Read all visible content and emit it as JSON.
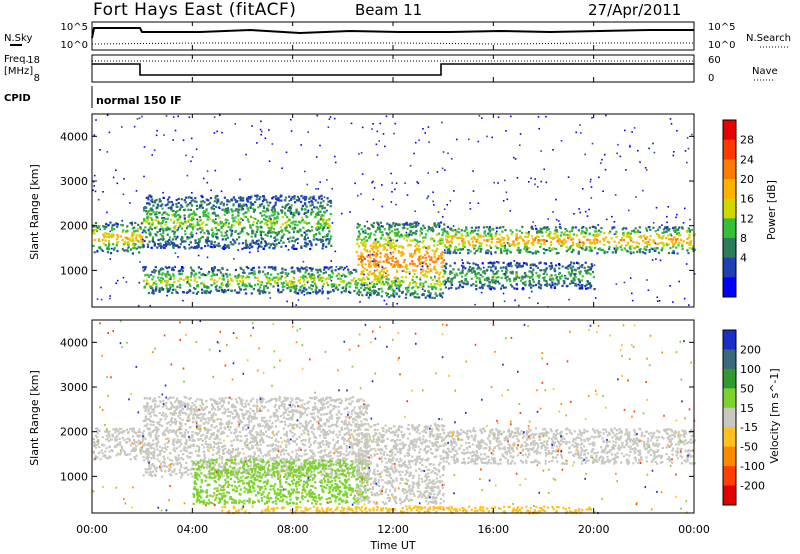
{
  "header": {
    "station": "Fort Hays East (fitACF)",
    "beam": "Beam 11",
    "date": "27/Apr/2011"
  },
  "top_panels": {
    "nsky_label": "N.Sky",
    "nsearch_label": "N.Search",
    "noise_ticks": [
      "10^5",
      "10^0"
    ],
    "freq_label_1": "Freq.",
    "freq_label_2": "[MHz]",
    "freq_ticks": [
      "18",
      "8"
    ],
    "nave_label": "Nave",
    "nave_ticks": [
      "60",
      "0"
    ],
    "cpid_label": "CPID",
    "cpid_value": "normal 150 IF"
  },
  "axes": {
    "ylabel": "Slant Range [km]",
    "yticks": [
      "4000",
      "3000",
      "2000",
      "1000"
    ],
    "xlabel": "Time UT",
    "xticks": [
      "00:00",
      "04:00",
      "08:00",
      "12:00",
      "16:00",
      "20:00",
      "00:00"
    ]
  },
  "power_scale": {
    "label": "Power [dB]",
    "ticks": [
      "28",
      "24",
      "20",
      "16",
      "12",
      "8",
      "4"
    ],
    "colors": [
      "#0000ff",
      "#1e40b4",
      "#2e7d5a",
      "#34c034",
      "#cfd600",
      "#ffb000",
      "#ff7a00",
      "#ff3a00",
      "#e80000"
    ]
  },
  "velocity_scale": {
    "label": "Velocity [m s^-1]",
    "ticks": [
      "200",
      "100",
      "50",
      "15",
      "-15",
      "-50",
      "-100",
      "-200"
    ],
    "colors": [
      "#1830c8",
      "#3a6a7a",
      "#2f9a2f",
      "#7cd32c",
      "#c8c8c0",
      "#ffc020",
      "#ff8a00",
      "#ff4000",
      "#e00000"
    ]
  },
  "chart_data": [
    {
      "type": "heatmap",
      "title": "Power",
      "xlabel": "Time UT",
      "ylabel": "Slant Range [km]",
      "xlim": [
        0,
        24
      ],
      "ylim": [
        180,
        4500
      ],
      "colorbar": "Power [dB]",
      "bands": [
        {
          "t0": 0.0,
          "t1": 2.0,
          "range_start": 1400,
          "range_end": 2100,
          "power": 20
        },
        {
          "t0": 2.0,
          "t1": 10.5,
          "range_start": 500,
          "range_end": 1100,
          "power": 16
        },
        {
          "t0": 2.0,
          "t1": 9.5,
          "range_start": 1500,
          "range_end": 2700,
          "power": 14
        },
        {
          "t0": 10.5,
          "t1": 14.0,
          "range_start": 400,
          "range_end": 2100,
          "power": 24
        },
        {
          "t0": 14.0,
          "t1": 24.0,
          "range_start": 1400,
          "range_end": 2000,
          "power": 22
        },
        {
          "t0": 14.0,
          "t1": 20.0,
          "range_start": 600,
          "range_end": 1200,
          "power": 12
        }
      ]
    },
    {
      "type": "heatmap",
      "title": "Velocity",
      "xlabel": "Time UT",
      "ylabel": "Slant Range [km]",
      "xlim": [
        0,
        24
      ],
      "ylim": [
        180,
        4500
      ],
      "colorbar": "Velocity [m s^-1]",
      "bands": [
        {
          "t0": 0.0,
          "t1": 2.0,
          "range_start": 1400,
          "range_end": 2100,
          "velocity": 0
        },
        {
          "t0": 2.0,
          "t1": 11.0,
          "range_start": 1000,
          "range_end": 2800,
          "velocity": 0
        },
        {
          "t0": 4.0,
          "t1": 11.0,
          "range_start": 400,
          "range_end": 1400,
          "velocity": 40
        },
        {
          "t0": 10.5,
          "t1": 14.0,
          "range_start": 400,
          "range_end": 2200,
          "velocity": 0
        },
        {
          "t0": 14.0,
          "t1": 24.0,
          "range_start": 1300,
          "range_end": 2100,
          "velocity": 0
        },
        {
          "t0": 5.0,
          "t1": 20.0,
          "range_start": 200,
          "range_end": 350,
          "velocity": -40
        }
      ]
    }
  ]
}
